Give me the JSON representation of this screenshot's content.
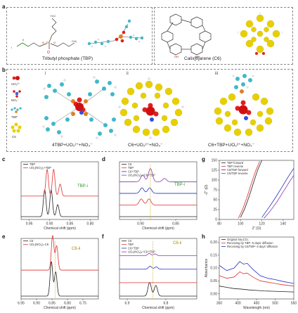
{
  "panel_letters": [
    "a",
    "b",
    "c",
    "d",
    "e",
    "f",
    "g",
    "h"
  ],
  "panel_a": {
    "tbp_caption": "Tributyl phosphate (TBP)",
    "c6_caption": "Calix[6]arene (C6)"
  },
  "panel_b": {
    "legend_items": [
      "UO₂²⁺",
      "NO₃⁻",
      "TBP",
      "C6"
    ],
    "sub_labels": [
      "i",
      "ii",
      "iii"
    ],
    "complex_labels": [
      "4TBP+UO₂²⁺+NO₃⁻",
      "C6+UO₂²⁺+NO₃⁻",
      "C6+TBP+UO₂²⁺+NO₃⁻"
    ]
  },
  "colors": {
    "black_trace": "#222222",
    "red_trace": "#e03030",
    "purple_trace": "#8a3aa8",
    "blue_trace": "#2030c0",
    "peak_label_green": "#2a9a2a",
    "peak_label_olive": "#a09000",
    "uranium_red": "#d01010",
    "c6_yellow": "#e8d000",
    "tbp_cyan": "#40b8c8"
  },
  "chart_data": [
    {
      "panel": "c",
      "type": "line",
      "xlabel": "Chemical shift (ppm)",
      "xlim": [
        0.97,
        0.78
      ],
      "x_ticks": [
        "0.95",
        "0.90",
        "0.85",
        "0.80"
      ],
      "peak_label": "TBP-i",
      "series": [
        {
          "name": "TBP",
          "color": "#222222",
          "offset": 0,
          "peaks": [
            {
              "x": 0.912,
              "h": 1.0
            },
            {
              "x": 0.896,
              "h": 1.0
            },
            {
              "x": 0.88,
              "h": 0.45
            }
          ]
        },
        {
          "name": "UO₂(NO₃)₂+TBP",
          "color": "#e03030",
          "offset": 0.9,
          "peaks": [
            {
              "x": 0.906,
              "h": 1.0
            },
            {
              "x": 0.89,
              "h": 1.0
            },
            {
              "x": 0.874,
              "h": 0.45
            }
          ]
        }
      ]
    },
    {
      "panel": "d",
      "type": "line",
      "xlabel": "Chemical shift (ppm)",
      "xlim": [
        0.93,
        0.82
      ],
      "x_ticks": [
        "0.90",
        "0.85"
      ],
      "peak_label": "TBP-i",
      "series": [
        {
          "name": "C6",
          "color": "#222222",
          "offset": 0,
          "peaks": []
        },
        {
          "name": "TBP",
          "color": "#e03030",
          "offset": 0.55,
          "peaks": [
            {
              "x": 0.899,
              "h": 0.55
            },
            {
              "x": 0.888,
              "h": 0.55
            }
          ]
        },
        {
          "name": "C6+TBP",
          "color": "#2030c0",
          "offset": 1.1,
          "peaks": [
            {
              "x": 0.898,
              "h": 0.5
            },
            {
              "x": 0.887,
              "h": 0.5
            }
          ]
        },
        {
          "name": "UO₂(NO₃)₂+C6+TBP",
          "color": "#8a3aa8",
          "offset": 1.65,
          "peaks": [
            {
              "x": 0.897,
              "h": 0.6
            },
            {
              "x": 0.886,
              "h": 1.2
            },
            {
              "x": 0.866,
              "h": 0.3
            }
          ]
        }
      ]
    },
    {
      "panel": "e",
      "type": "line",
      "xlabel": "Chemical shift (ppm)",
      "xlim": [
        6.95,
        6.7
      ],
      "x_ticks": [
        "6.95",
        "6.90",
        "6.85",
        "6.80",
        "6.75"
      ],
      "peak_label": "C6-ii",
      "series": [
        {
          "name": "C6",
          "color": "#222222",
          "offset": 0,
          "peaks": [
            {
              "x": 6.852,
              "h": 1.0
            },
            {
              "x": 6.838,
              "h": 0.7
            }
          ]
        },
        {
          "name": "UO₂(NO₃)₂-C6",
          "color": "#e03030",
          "offset": 0.35,
          "peaks": [
            {
              "x": 6.848,
              "h": 1.0
            },
            {
              "x": 6.835,
              "h": 0.7
            }
          ]
        }
      ]
    },
    {
      "panel": "f",
      "type": "line",
      "xlabel": "Chemical shift (ppm)",
      "xlim": [
        6.92,
        6.72
      ],
      "x_ticks": [
        "6.9",
        "6.8"
      ],
      "peak_label": "C6-ii",
      "series": [
        {
          "name": "C6",
          "color": "#222222",
          "offset": 0,
          "peaks": [
            {
              "x": 6.842,
              "h": 0.9
            },
            {
              "x": 6.826,
              "h": 0.7
            }
          ]
        },
        {
          "name": "TBP",
          "color": "#e03030",
          "offset": 0.3,
          "peaks": []
        },
        {
          "name": "C6+TBP",
          "color": "#2030c0",
          "offset": 0.6,
          "peaks": [
            {
              "x": 6.841,
              "h": 0.2
            },
            {
              "x": 6.825,
              "h": 0.15
            }
          ]
        },
        {
          "name": "UO₂(NO₃)₂+C6+TBP",
          "color": "#8a3aa8",
          "offset": 0.9,
          "peaks": [
            {
              "x": 6.843,
              "h": 0.15
            },
            {
              "x": 6.828,
              "h": 0.12
            }
          ]
        }
      ]
    },
    {
      "panel": "g",
      "type": "line",
      "xlabel": "Z' (Ω)",
      "ylabel": "-Z'' (Ω)",
      "xlim": [
        80,
        150
      ],
      "ylim": [
        0,
        150
      ],
      "x_ticks": [
        80,
        100,
        120,
        140
      ],
      "y_ticks": [
        0,
        25,
        50,
        75,
        100,
        125,
        150
      ],
      "series": [
        {
          "name": "TBP forward",
          "color": "#222222",
          "x": [
            100,
            104,
            108,
            112,
            116,
            120
          ],
          "y": [
            5,
            28,
            58,
            92,
            125,
            150
          ]
        },
        {
          "name": "TBP reverse",
          "color": "#e03030",
          "x": [
            98,
            102,
            106,
            110,
            114,
            118
          ],
          "y": [
            3,
            26,
            56,
            90,
            122,
            148
          ]
        },
        {
          "name": "C6/TBP forward",
          "color": "#2030c0",
          "x": [
            120,
            126,
            132,
            138,
            144,
            150
          ],
          "y": [
            5,
            28,
            52,
            78,
            105,
            130
          ]
        },
        {
          "name": "C6/TBP reverse",
          "color": "#8a3aa8",
          "x": [
            122,
            128,
            134,
            140,
            146,
            150
          ],
          "y": [
            3,
            22,
            44,
            70,
            96,
            112
          ]
        }
      ]
    },
    {
      "panel": "h",
      "type": "line",
      "xlabel": "Wavelength (nm)",
      "ylabel": "Absorbance",
      "xlim": [
        350,
        550
      ],
      "ylim": [
        -0.02,
        0.22
      ],
      "x_ticks": [
        350,
        400,
        450,
        500,
        550
      ],
      "y_ticks": [
        "0.00",
        "0.05",
        "0.10",
        "0.15",
        "0.20"
      ],
      "series": [
        {
          "name": "Original Na₂CO₃",
          "color": "#222222",
          "x": [
            350,
            370,
            390,
            410,
            430,
            450,
            470,
            490,
            510,
            530,
            550
          ],
          "y": [
            0.03,
            0.025,
            0.02,
            0.018,
            0.015,
            0.013,
            0.011,
            0.01,
            0.009,
            0.008,
            0.007
          ]
        },
        {
          "name": "Receiving by TBP- 6 days' diffusion",
          "color": "#e03030",
          "x": [
            350,
            370,
            390,
            405,
            415,
            425,
            440,
            460,
            480,
            500,
            520,
            550
          ],
          "y": [
            0.07,
            0.06,
            0.065,
            0.085,
            0.078,
            0.08,
            0.065,
            0.05,
            0.045,
            0.04,
            0.035,
            0.03
          ]
        },
        {
          "name": "Receiving by C6/TBP- 6 days' diffusion",
          "color": "#2030c0",
          "x": [
            350,
            370,
            390,
            405,
            415,
            425,
            440,
            460,
            480,
            500,
            520,
            550
          ],
          "y": [
            0.11,
            0.09,
            0.1,
            0.125,
            0.115,
            0.118,
            0.095,
            0.07,
            0.06,
            0.055,
            0.048,
            0.04
          ]
        }
      ]
    }
  ]
}
